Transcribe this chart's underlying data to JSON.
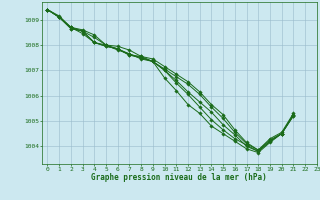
{
  "title": "Graphe pression niveau de la mer (hPa)",
  "background_color": "#cce8f0",
  "grid_color": "#99bbcc",
  "line_color": "#1a6b1a",
  "xlim": [
    -0.5,
    23
  ],
  "ylim": [
    1003.3,
    1009.7
  ],
  "yticks": [
    1004,
    1005,
    1006,
    1007,
    1008,
    1009
  ],
  "xticks": [
    0,
    1,
    2,
    3,
    4,
    5,
    6,
    7,
    8,
    9,
    10,
    11,
    12,
    13,
    14,
    15,
    16,
    17,
    18,
    19,
    20,
    21,
    22,
    23
  ],
  "series": [
    [
      1009.4,
      1009.1,
      1008.65,
      1008.55,
      1008.3,
      1008.0,
      1007.95,
      1007.8,
      1007.55,
      1007.45,
      1007.15,
      1006.85,
      1006.55,
      1006.15,
      1005.65,
      1005.25,
      1004.65,
      1004.15,
      1003.85,
      1004.3,
      1004.55,
      1005.3,
      null,
      null
    ],
    [
      1009.4,
      1009.1,
      1008.65,
      1008.55,
      1008.1,
      1008.0,
      1007.85,
      1007.6,
      1007.5,
      1007.35,
      1007.05,
      1006.75,
      1006.45,
      1006.05,
      1005.55,
      1005.1,
      1004.55,
      1004.1,
      1003.85,
      1004.25,
      1004.5,
      1005.25,
      null,
      null
    ],
    [
      1009.4,
      1009.1,
      1008.7,
      1008.6,
      1008.4,
      1008.0,
      1007.8,
      1007.65,
      1007.45,
      1007.35,
      1007.0,
      1006.6,
      1006.15,
      1005.75,
      1005.35,
      1004.85,
      1004.45,
      1004.0,
      1003.8,
      1004.2,
      1004.5,
      1005.25,
      null,
      null
    ],
    [
      1009.4,
      1009.1,
      1008.7,
      1008.45,
      1008.1,
      1007.95,
      1007.85,
      1007.6,
      1007.55,
      1007.35,
      1007.0,
      1006.5,
      1006.05,
      1005.55,
      1005.05,
      1004.65,
      1004.3,
      1004.05,
      1003.8,
      1004.2,
      1004.5,
      1005.2,
      null,
      null
    ],
    [
      1009.4,
      1009.15,
      1008.7,
      1008.55,
      1008.1,
      1007.95,
      1007.85,
      1007.65,
      1007.5,
      1007.35,
      1006.7,
      1006.2,
      1005.65,
      1005.3,
      1004.8,
      1004.5,
      1004.2,
      1003.9,
      1003.75,
      1004.15,
      1004.5,
      1005.2,
      null,
      null
    ]
  ]
}
